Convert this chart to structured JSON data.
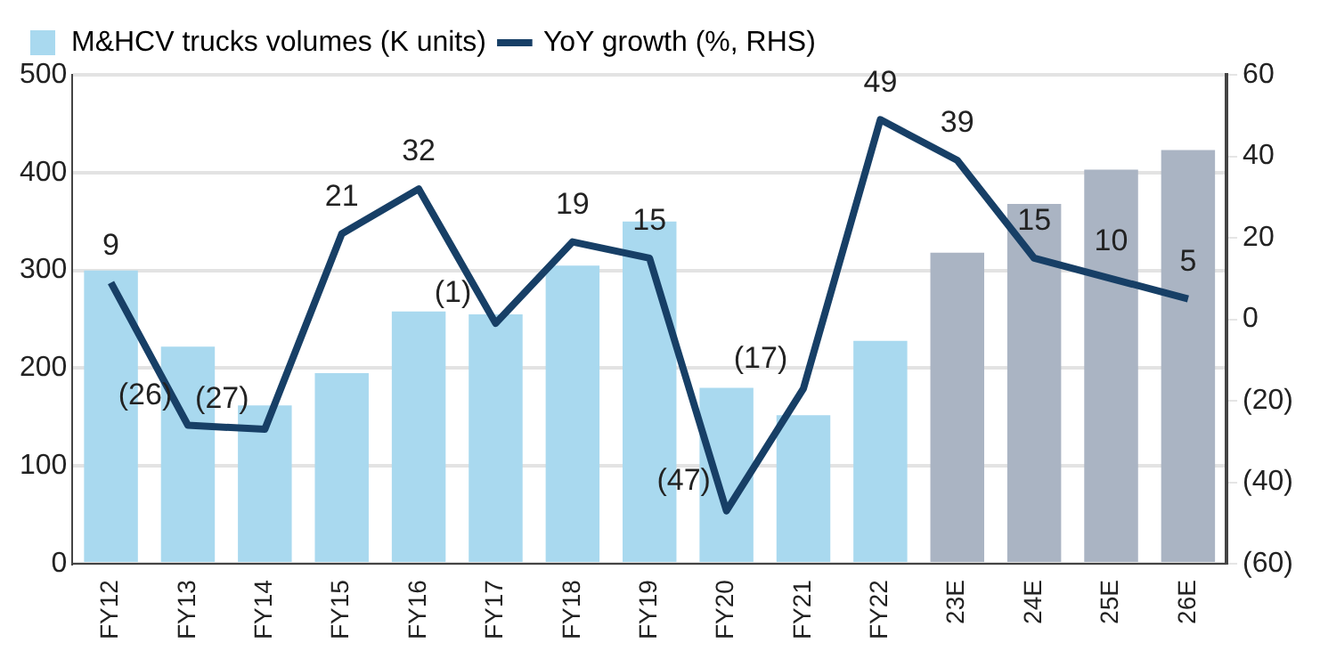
{
  "chart_data": {
    "type": "bar",
    "categories": [
      "FY12",
      "FY13",
      "FY14",
      "FY15",
      "FY16",
      "FY17",
      "FY18",
      "FY19",
      "FY20",
      "FY21",
      "FY22",
      "23E",
      "24E",
      "25E",
      "26E"
    ],
    "series": [
      {
        "name": "M&HCV trucks volumes (K units)",
        "color": "#a9d9ef",
        "colors": [
          "#a9d9ef",
          "#a9d9ef",
          "#a9d9ef",
          "#a9d9ef",
          "#a9d9ef",
          "#a9d9ef",
          "#a9d9ef",
          "#a9d9ef",
          "#a9d9ef",
          "#a9d9ef",
          "#a9d9ef",
          "#aab4c3",
          "#aab4c3",
          "#aab4c3",
          "#aab4c3"
        ],
        "values": [
          300,
          222,
          162,
          195,
          258,
          255,
          305,
          350,
          180,
          152,
          228,
          318,
          368,
          403,
          423
        ]
      },
      {
        "name": "YoY growth (%, RHS)",
        "type": "line",
        "axis": "y2",
        "color": "#173f66",
        "values": [
          9,
          -26,
          -27,
          21,
          32,
          -1,
          19,
          15,
          -47,
          -17,
          49,
          39,
          15,
          10,
          5
        ],
        "value_labels": [
          "9",
          "(26)",
          "(27)",
          "21",
          "32",
          "(1)",
          "19",
          "15",
          "(47)",
          "(17)",
          "49",
          "39",
          "15",
          "10",
          "5"
        ]
      }
    ],
    "ylim": [
      0,
      500
    ],
    "yticks": [
      0,
      100,
      200,
      300,
      400,
      500
    ],
    "y2lim": [
      -60,
      60
    ],
    "y2ticks": [
      {
        "value": -60,
        "label": "(60)"
      },
      {
        "value": -40,
        "label": "(40)"
      },
      {
        "value": -20,
        "label": "(20)"
      },
      0,
      20,
      40,
      60
    ],
    "grid": "y",
    "legend": "top",
    "marker": "none"
  }
}
